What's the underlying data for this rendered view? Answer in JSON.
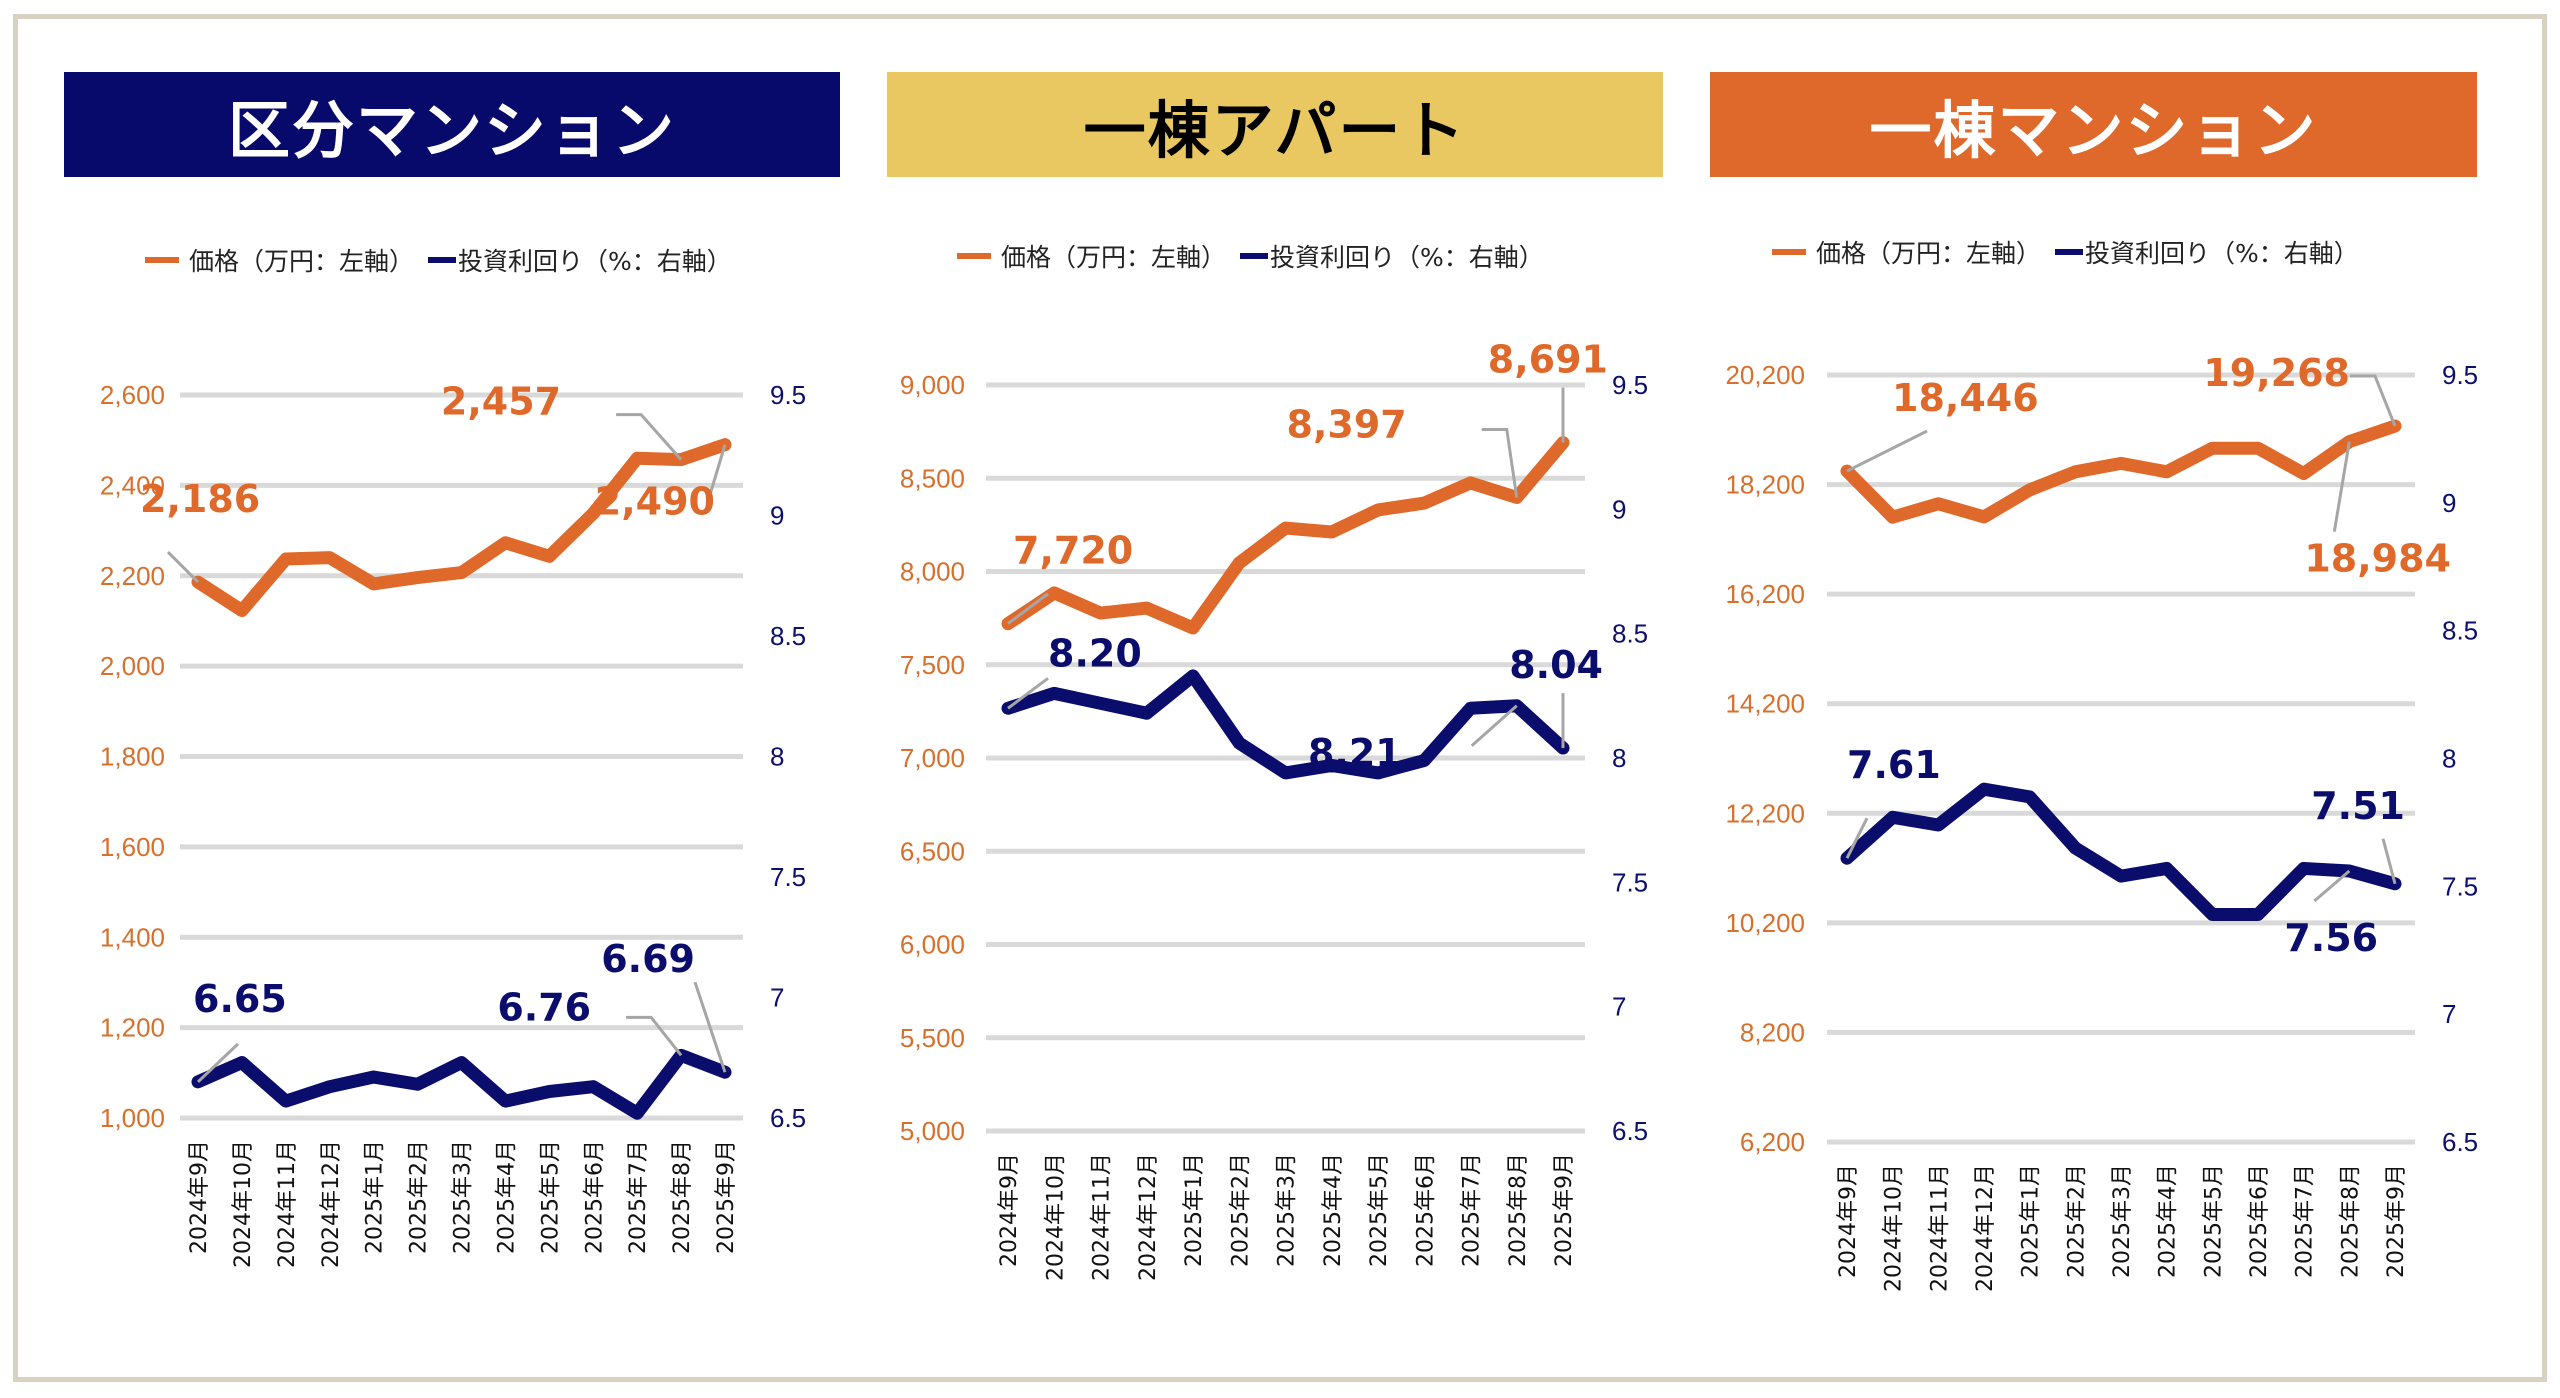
{
  "colors": {
    "price": "#df692a",
    "yield": "#0a0d6b",
    "grid": "#d9d9d9",
    "leader": "#a6a6a6",
    "left_axis_text": "#d7702d",
    "right_axis_text": "#0c0f6b"
  },
  "legend": {
    "price_label": "価格（万円：左軸）",
    "yield_label": "投資利回り（%：右軸）"
  },
  "chart_data": [
    {
      "type": "line",
      "title": "区分マンション",
      "categories": [
        "2024年9月",
        "2024年10月",
        "2024年11月",
        "2024年12月",
        "2025年1月",
        "2025年2月",
        "2025年3月",
        "2025年4月",
        "2025年5月",
        "2025年6月",
        "2025年7月",
        "2025年8月",
        "2025年9月"
      ],
      "series": [
        {
          "name": "価格（万円：左軸）",
          "axis": "left",
          "values": [
            2186,
            2123,
            2237,
            2240,
            2182,
            2196,
            2207,
            2273,
            2243,
            2338,
            2460,
            2457,
            2490
          ]
        },
        {
          "name": "投資利回り（%：右軸）",
          "axis": "right",
          "values": [
            6.65,
            6.73,
            6.57,
            6.63,
            6.67,
            6.64,
            6.73,
            6.57,
            6.61,
            6.63,
            6.52,
            6.76,
            6.69
          ]
        }
      ],
      "left_axis": {
        "ylim": [
          1000,
          2600
        ],
        "ticks": [
          "1,000",
          "1,200",
          "1,400",
          "1,600",
          "1,800",
          "2,000",
          "2,200",
          "2,400",
          "2,600"
        ]
      },
      "right_axis": {
        "ylim": [
          6.5,
          9.5
        ],
        "ticks": [
          "6.5",
          "7",
          "7.5",
          "8",
          "8.5",
          "9",
          "9.5"
        ]
      },
      "data_labels": [
        {
          "series": 0,
          "index": 0,
          "text": "2,186"
        },
        {
          "series": 0,
          "index": 11,
          "text": "2,457"
        },
        {
          "series": 0,
          "index": 12,
          "text": "2,490"
        },
        {
          "series": 1,
          "index": 0,
          "text": "6.65"
        },
        {
          "series": 1,
          "index": 11,
          "text": "6.76"
        },
        {
          "series": 1,
          "index": 12,
          "text": "6.69"
        }
      ],
      "grid": true,
      "legend_position": "top"
    },
    {
      "type": "line",
      "title": "一棟アパート",
      "categories": [
        "2024年9月",
        "2024年10月",
        "2024年11月",
        "2024年12月",
        "2025年1月",
        "2025年2月",
        "2025年3月",
        "2025年4月",
        "2025年5月",
        "2025年6月",
        "2025年7月",
        "2025年8月",
        "2025年9月"
      ],
      "series": [
        {
          "name": "価格（万円：左軸）",
          "axis": "left",
          "values": [
            7720,
            7885,
            7777,
            7804,
            7697,
            8046,
            8233,
            8212,
            8330,
            8367,
            8475,
            8397,
            8691
          ]
        },
        {
          "name": "投資利回り（%：右軸）",
          "axis": "right",
          "values": [
            8.2,
            8.26,
            8.22,
            8.18,
            8.33,
            8.06,
            7.94,
            7.97,
            7.94,
            7.99,
            8.2,
            8.21,
            8.04
          ]
        }
      ],
      "left_axis": {
        "ylim": [
          5000,
          9000
        ],
        "ticks": [
          "5,000",
          "5,500",
          "6,000",
          "6,500",
          "7,000",
          "7,500",
          "8,000",
          "8,500",
          "9,000"
        ]
      },
      "right_axis": {
        "ylim": [
          6.5,
          9.5
        ],
        "ticks": [
          "6.5",
          "7",
          "7.5",
          "8",
          "8.5",
          "9",
          "9.5"
        ]
      },
      "data_labels": [
        {
          "series": 0,
          "index": 0,
          "text": "7,720"
        },
        {
          "series": 0,
          "index": 11,
          "text": "8,397"
        },
        {
          "series": 0,
          "index": 12,
          "text": "8,691"
        },
        {
          "series": 1,
          "index": 0,
          "text": "8.20"
        },
        {
          "series": 1,
          "index": 11,
          "text": "8.21"
        },
        {
          "series": 1,
          "index": 12,
          "text": "8.04"
        }
      ],
      "grid": true,
      "legend_position": "top"
    },
    {
      "type": "line",
      "title": "一棟マンション",
      "categories": [
        "2024年9月",
        "2024年10月",
        "2024年11月",
        "2024年12月",
        "2025年1月",
        "2025年2月",
        "2025年3月",
        "2025年4月",
        "2025年5月",
        "2025年6月",
        "2025年7月",
        "2025年8月",
        "2025年9月"
      ],
      "series": [
        {
          "name": "価格（万円：左軸）",
          "axis": "left",
          "values": [
            18446,
            17605,
            17850,
            17610,
            18102,
            18433,
            18587,
            18433,
            18863,
            18863,
            18402,
            18984,
            19268
          ]
        },
        {
          "name": "投資利回り（%：右軸）",
          "axis": "right",
          "values": [
            7.61,
            7.77,
            7.74,
            7.88,
            7.85,
            7.65,
            7.54,
            7.57,
            7.39,
            7.39,
            7.57,
            7.56,
            7.51
          ]
        }
      ],
      "left_axis": {
        "ylim": [
          6200,
          20200
        ],
        "ticks": [
          "6,200",
          "8,200",
          "10,200",
          "12,200",
          "14,200",
          "16,200",
          "18,200",
          "20,200"
        ]
      },
      "right_axis": {
        "ylim": [
          6.5,
          9.5
        ],
        "ticks": [
          "6.5",
          "7",
          "7.5",
          "8",
          "8.5",
          "9",
          "9.5"
        ]
      },
      "data_labels": [
        {
          "series": 0,
          "index": 0,
          "text": "18,446"
        },
        {
          "series": 0,
          "index": 11,
          "text": "18,984"
        },
        {
          "series": 0,
          "index": 12,
          "text": "19,268"
        },
        {
          "series": 1,
          "index": 0,
          "text": "7.61"
        },
        {
          "series": 1,
          "index": 11,
          "text": "7.56"
        },
        {
          "series": 1,
          "index": 12,
          "text": "7.51"
        }
      ],
      "grid": true,
      "legend_position": "top"
    }
  ]
}
